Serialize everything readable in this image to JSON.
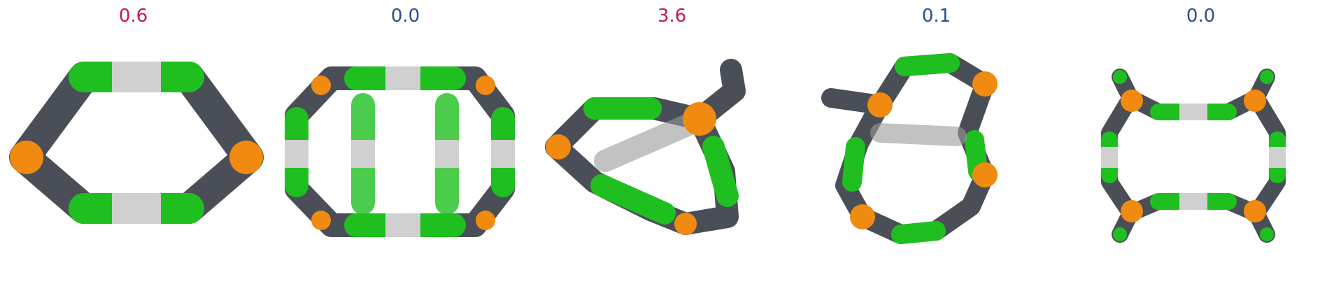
{
  "colors": {
    "high": "#c2185b",
    "low": "#2b4f8c",
    "segment_green": "#1fbf1f",
    "segment_dark": "#4a4f57",
    "segment_light": "#cfcfcf",
    "node_orange": "#f08a10"
  },
  "panels": [
    {
      "value": "0.6",
      "value_color": "#c2185b",
      "icon": "hexagonal-ring-molecule"
    },
    {
      "value": "0.0",
      "value_color": "#2b4f8c",
      "icon": "cage-molecule-front"
    },
    {
      "value": "3.6",
      "value_color": "#c2185b",
      "icon": "twisted-cage-molecule"
    },
    {
      "value": "0.1",
      "value_color": "#2b4f8c",
      "icon": "tilted-cage-molecule"
    },
    {
      "value": "0.0",
      "value_color": "#2b4f8c",
      "icon": "cage-molecule-top"
    }
  ]
}
